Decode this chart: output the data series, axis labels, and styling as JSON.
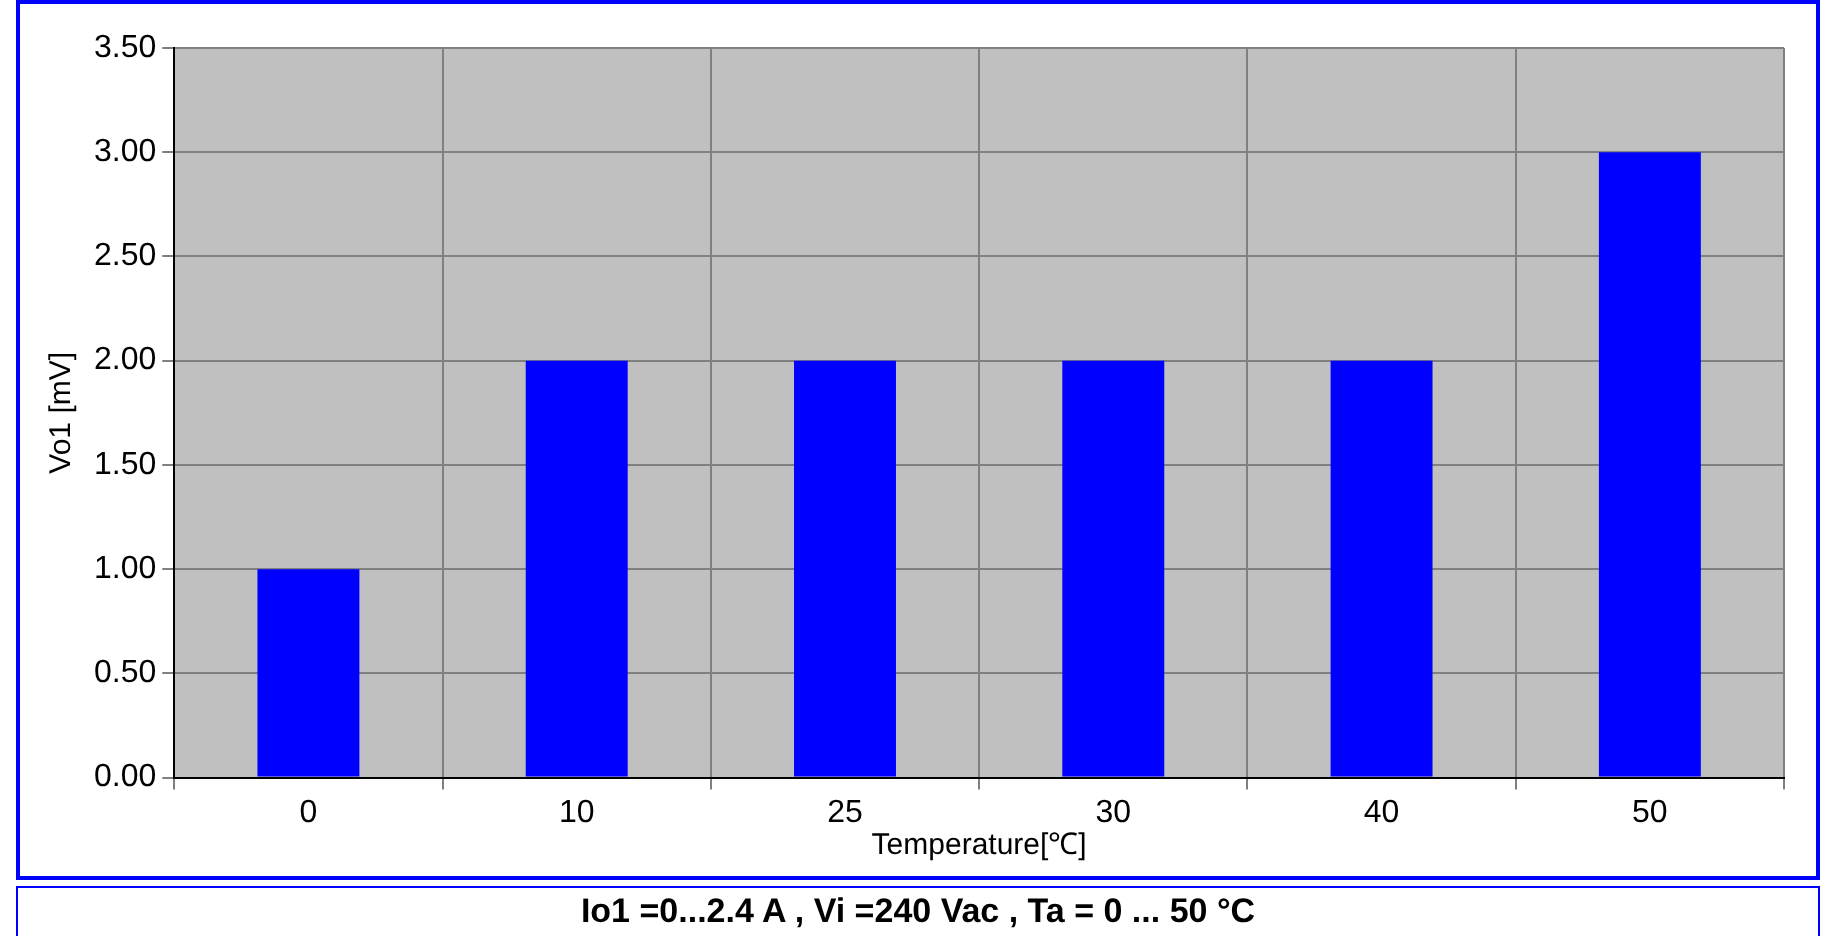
{
  "chart_data": {
    "type": "bar",
    "xlabel": "Temperature[℃]",
    "ylabel": "Vo1 [mV]",
    "categories": [
      "0",
      "10",
      "25",
      "30",
      "40",
      "50"
    ],
    "values": [
      1,
      2,
      2,
      2,
      2,
      3
    ],
    "color": "#0000ff",
    "ylim": [
      0,
      3.5
    ],
    "yticks": [
      {
        "value": 0,
        "label": "0.00"
      },
      {
        "value": 0.5,
        "label": "0.50"
      },
      {
        "value": 1,
        "label": "1.00"
      },
      {
        "value": 1.5,
        "label": "1.50"
      },
      {
        "value": 2,
        "label": "2.00"
      },
      {
        "value": 2.5,
        "label": "2.50"
      },
      {
        "value": 3,
        "label": "3.00"
      },
      {
        "value": 3.5,
        "label": "3.50"
      }
    ],
    "grid": true,
    "legend": false,
    "annotations": [
      "Io1 =0...2.4 A , Vi =240 Vac , Ta = 0 ... 50 °C"
    ]
  }
}
